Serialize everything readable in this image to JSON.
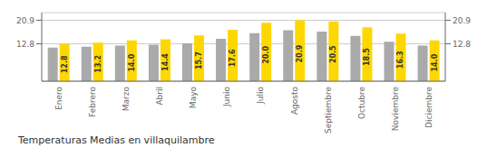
{
  "chart_data": {
    "type": "bar",
    "title": "Temperaturas Medias en villaquilambre",
    "categories": [
      "Enero",
      "Febrero",
      "Marzo",
      "Abril",
      "Mayo",
      "Junio",
      "Julio",
      "Agosto",
      "Septiembre",
      "Octubre",
      "Noviembre",
      "Diciembre"
    ],
    "series": [
      {
        "color": "#AAAAAA",
        "values": [
          11.5,
          11.8,
          12.2,
          12.5,
          13.0,
          14.5,
          16.5,
          17.5,
          17.0,
          15.5,
          13.5,
          12.2
        ]
      },
      {
        "color": "#FFD700",
        "values": [
          12.8,
          13.2,
          14.0,
          14.4,
          15.7,
          17.6,
          20.0,
          20.9,
          20.5,
          18.5,
          16.3,
          14.0
        ],
        "data_labels": true,
        "value_labels": [
          "12.8",
          "13.2",
          "14.0",
          "14.4",
          "15.7",
          "17.6",
          "20.0",
          "20.9",
          "20.5",
          "18.5",
          "16.3",
          "14.0"
        ]
      }
    ],
    "ylim": [
      0,
      23.5
    ],
    "yticks": [
      12.8,
      20.9
    ],
    "y2lim": [
      0,
      23.5
    ],
    "y2ticks": [
      12.8,
      20.9
    ],
    "grid": true
  }
}
